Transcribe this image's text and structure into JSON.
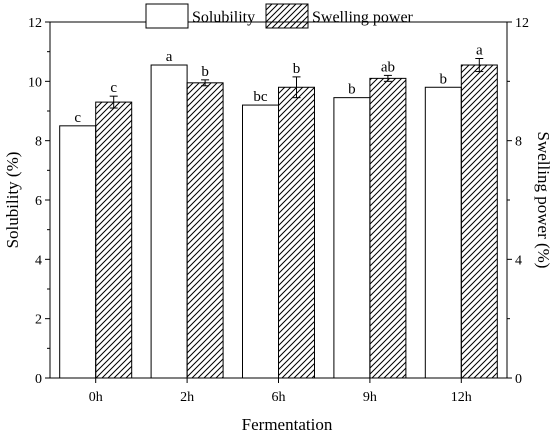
{
  "chart_data": {
    "type": "bar",
    "categories": [
      "0h",
      "2h",
      "6h",
      "9h",
      "12h"
    ],
    "xlabel": "Fermentation",
    "ylabel": "Solubility (%)",
    "y2label": "Swelling power (%)",
    "ylim": [
      0,
      12
    ],
    "y2lim": [
      0,
      12
    ],
    "yticks": [
      0,
      2,
      4,
      6,
      8,
      10,
      12
    ],
    "y2ticks": [
      0,
      4,
      8,
      12
    ],
    "grid": false,
    "legend_position": "top",
    "series": [
      {
        "name": "Solubility",
        "axis": "left",
        "pattern": "plain",
        "values": [
          8.5,
          10.55,
          9.2,
          9.45,
          9.8
        ],
        "errors": [
          0,
          0,
          0,
          0,
          0
        ],
        "labels": [
          "c",
          "a",
          "bc",
          "b",
          "b"
        ]
      },
      {
        "name": "Swelling power",
        "axis": "right",
        "pattern": "hatched",
        "values": [
          9.3,
          9.95,
          9.8,
          10.1,
          10.55
        ],
        "errors": [
          0.2,
          0.1,
          0.35,
          0.1,
          0.22
        ],
        "labels": [
          "c",
          "b",
          "b",
          "ab",
          "a"
        ]
      }
    ]
  }
}
